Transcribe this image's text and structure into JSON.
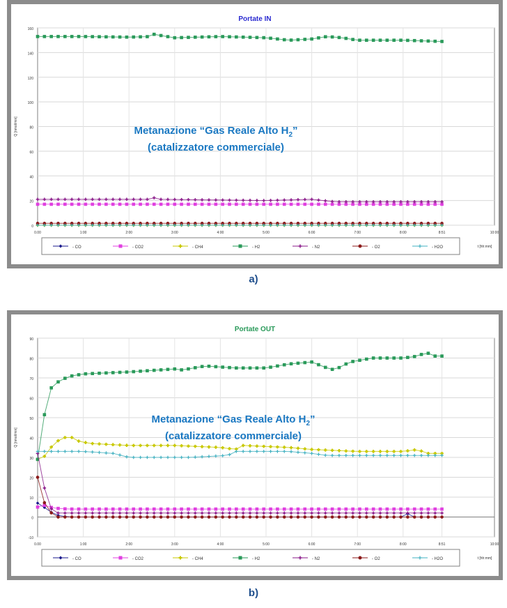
{
  "chart_data": [
    {
      "type": "scatter",
      "title": "Portate  IN",
      "title_color": "#2a2ad0",
      "ylabel": "Q [nmol/min]",
      "xlabel": "t [hh:mm]",
      "x_ticks": [
        "0.00",
        "1:00",
        "2:00",
        "3:00",
        "4:00",
        "5:00",
        "6:00",
        "7:00",
        "8:00",
        "8:51",
        "10:00"
      ],
      "y_ticks": [
        "0",
        "20",
        "40",
        "60",
        "80",
        "100",
        "120",
        "140",
        "160"
      ],
      "xlim": [
        0,
        600
      ],
      "ylim": [
        0,
        160
      ],
      "grid": true,
      "legend_position": "bottom",
      "overlay": {
        "line1": "Metanazione “Gas Reale Alto H",
        "sub": "2",
        "line1_end": "”",
        "line2": "(catalizzatore commerciale)"
      },
      "series": [
        {
          "name": "CO",
          "color": "#1a1a8c",
          "constant": 0,
          "noise": 0
        },
        {
          "name": "CO2",
          "color": "#e040e0",
          "constant": 17,
          "noise": 0.3
        },
        {
          "name": "CH4",
          "color": "#c8c800",
          "constant": 0,
          "noise": 0
        },
        {
          "name": "H2",
          "color": "#2a9a5a",
          "values_points": [
            [
              0,
              153
            ],
            [
              60,
              153
            ],
            [
              120,
              152.5
            ],
            [
              150,
              153
            ],
            [
              155,
              156
            ],
            [
              160,
              154
            ],
            [
              180,
              152
            ],
            [
              240,
              153
            ],
            [
              300,
              152
            ],
            [
              330,
              150
            ],
            [
              360,
              151
            ],
            [
              380,
              153
            ],
            [
              400,
              152
            ],
            [
              420,
              150
            ],
            [
              480,
              150
            ],
            [
              530,
              149
            ],
            [
              540,
              149
            ]
          ]
        },
        {
          "name": "N2",
          "color": "#8a1a8a",
          "values_points": [
            [
              0,
              21
            ],
            [
              150,
              21
            ],
            [
              155,
              23
            ],
            [
              160,
              21
            ],
            [
              300,
              20
            ],
            [
              360,
              21
            ],
            [
              390,
              19
            ],
            [
              540,
              19
            ]
          ]
        },
        {
          "name": "O2",
          "color": "#8b1a1a",
          "constant": 1.5,
          "noise": 0
        },
        {
          "name": "H2O",
          "color": "#40b0c0",
          "constant": 0,
          "noise": 0
        }
      ],
      "end_x": 531
    },
    {
      "type": "scatter",
      "title": "Portate  OUT",
      "title_color": "#2a9a5a",
      "ylabel": "Q [nmol/min]",
      "xlabel": "t [hh:mm]",
      "x_ticks": [
        "0.00",
        "1:00",
        "2:00",
        "3:00",
        "4:00",
        "5:00",
        "6:00",
        "7:00",
        "8:00",
        "8:51",
        "10:00"
      ],
      "y_ticks": [
        "-10",
        "0",
        "10",
        "20",
        "30",
        "40",
        "50",
        "60",
        "70",
        "80",
        "90"
      ],
      "xlim": [
        0,
        600
      ],
      "ylim": [
        -10,
        90
      ],
      "grid": true,
      "legend_position": "bottom",
      "overlay": {
        "line1": "Metanazione “Gas Reale Alto H",
        "sub": "2",
        "line1_end": "”",
        "line2": "(catalizzatore commerciale)"
      },
      "series": [
        {
          "name": "CO",
          "color": "#1a1a8c",
          "values_points": [
            [
              0,
              7
            ],
            [
              5,
              6
            ],
            [
              15,
              3
            ],
            [
              25,
              1
            ],
            [
              40,
              0
            ],
            [
              480,
              0
            ],
            [
              485,
              2
            ],
            [
              490,
              0
            ],
            [
              540,
              0
            ]
          ]
        },
        {
          "name": "CO2",
          "color": "#e040e0",
          "values_points": [
            [
              0,
              5
            ],
            [
              10,
              6
            ],
            [
              20,
              4.5
            ],
            [
              40,
              4
            ],
            [
              540,
              4
            ]
          ]
        },
        {
          "name": "CH4",
          "color": "#c8c800",
          "values_points": [
            [
              0,
              29
            ],
            [
              8,
              30
            ],
            [
              15,
              34
            ],
            [
              25,
              38
            ],
            [
              35,
              40
            ],
            [
              45,
              40
            ],
            [
              55,
              38
            ],
            [
              70,
              37
            ],
            [
              120,
              36
            ],
            [
              180,
              36
            ],
            [
              240,
              35
            ],
            [
              260,
              34
            ],
            [
              270,
              36
            ],
            [
              330,
              35
            ],
            [
              360,
              34
            ],
            [
              420,
              33
            ],
            [
              480,
              33
            ],
            [
              500,
              34
            ],
            [
              510,
              32
            ],
            [
              540,
              32
            ]
          ]
        },
        {
          "name": "H2",
          "color": "#2a9a5a",
          "values_points": [
            [
              0,
              29
            ],
            [
              8,
              50
            ],
            [
              18,
              65
            ],
            [
              30,
              69
            ],
            [
              45,
              71
            ],
            [
              60,
              72
            ],
            [
              120,
              73
            ],
            [
              180,
              74.5
            ],
            [
              190,
              74
            ],
            [
              220,
              76
            ],
            [
              260,
              75
            ],
            [
              300,
              75
            ],
            [
              330,
              77
            ],
            [
              360,
              78
            ],
            [
              380,
              75
            ],
            [
              390,
              74
            ],
            [
              410,
              78
            ],
            [
              440,
              80
            ],
            [
              480,
              80
            ],
            [
              500,
              81
            ],
            [
              510,
              83
            ],
            [
              520,
              81
            ],
            [
              540,
              81
            ]
          ]
        },
        {
          "name": "N2",
          "color": "#8a1a8a",
          "values_points": [
            [
              0,
              32
            ],
            [
              5,
              25
            ],
            [
              10,
              12
            ],
            [
              15,
              5
            ],
            [
              25,
              2
            ],
            [
              40,
              2
            ],
            [
              540,
              2
            ]
          ]
        },
        {
          "name": "O2",
          "color": "#8b1a1a",
          "values_points": [
            [
              0,
              20
            ],
            [
              5,
              10
            ],
            [
              15,
              3
            ],
            [
              25,
              0
            ],
            [
              540,
              0
            ]
          ]
        },
        {
          "name": "H2O",
          "color": "#40b0c0",
          "values_points": [
            [
              0,
              33
            ],
            [
              20,
              33
            ],
            [
              60,
              33
            ],
            [
              100,
              32
            ],
            [
              120,
              30
            ],
            [
              200,
              30
            ],
            [
              250,
              31
            ],
            [
              260,
              33
            ],
            [
              330,
              33
            ],
            [
              360,
              32
            ],
            [
              380,
              31
            ],
            [
              540,
              31
            ]
          ]
        }
      ],
      "end_x": 531
    }
  ],
  "captions": {
    "a": "a)",
    "b": "b)"
  }
}
